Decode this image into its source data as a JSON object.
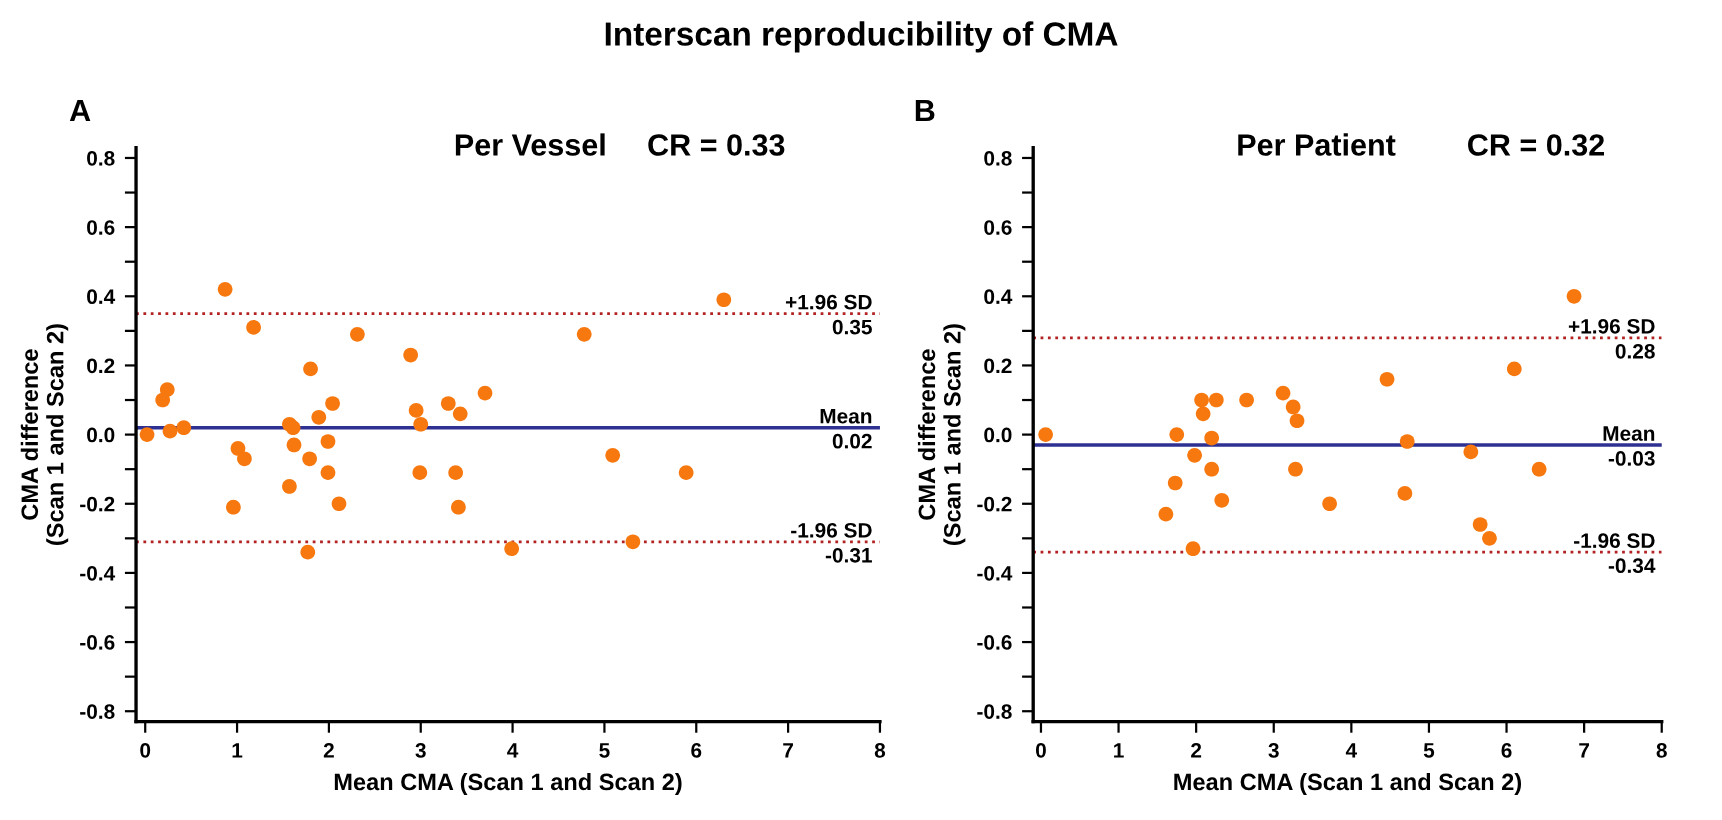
{
  "chart_data": [
    {
      "type": "scatter",
      "title": "Per Vessel",
      "xlabel": "Mean CMA (Scan 1 and Scan 2)",
      "ylabel": "CMA difference\n(Scan 1 and Scan 2)",
      "annotations": [
        "Interscan reproducibility of CMA",
        "A",
        "CR = 0.33",
        {
          "text": "0.35",
          "y": 0.35
        },
        {
          "text": "0.02",
          "y": 0.02
        },
        {
          "text": "-0.31",
          "y": -0.31
        }
      ],
      "series": [
        {
          "color": "#f7780f",
          "x": [
            0.02,
            0.19,
            0.24,
            0.27,
            0.42,
            0.87,
            0.96,
            1.01,
            1.08,
            1.18,
            1.57,
            1.61,
            1.57,
            1.62,
            1.8,
            1.79,
            1.77,
            1.89,
            1.99,
            1.99,
            2.04,
            2.11,
            2.31,
            2.89,
            2.95,
            3.0,
            2.99,
            3.3,
            3.43,
            3.38,
            3.41,
            3.7,
            3.99,
            4.78,
            5.09,
            5.31,
            5.89,
            6.3
          ],
          "values": [
            0.0,
            0.1,
            0.13,
            0.01,
            0.02,
            0.42,
            -0.21,
            -0.04,
            -0.07,
            0.31,
            0.03,
            0.02,
            -0.15,
            -0.03,
            0.19,
            -0.07,
            -0.34,
            0.05,
            -0.02,
            -0.11,
            0.09,
            -0.2,
            0.29,
            0.23,
            0.07,
            0.03,
            -0.11,
            0.09,
            0.06,
            -0.11,
            -0.21,
            0.12,
            -0.33,
            0.29,
            -0.06,
            -0.31,
            -0.11,
            0.39
          ]
        }
      ],
      "ref_lines": [
        {
          "axis": "y",
          "value": 0.35,
          "label": "+1.96 SD",
          "color": "#b22222",
          "line_style": "dotted"
        },
        {
          "axis": "y",
          "value": 0.02,
          "label": "Mean",
          "color": "#2e3192",
          "line_style": "solid"
        },
        {
          "axis": "y",
          "value": -0.31,
          "label": "-1.96 SD",
          "color": "#b22222",
          "line_style": "dotted"
        }
      ],
      "xlim": [
        -0.1,
        8
      ],
      "ylim": [
        -0.83,
        0.83
      ],
      "xticks": [
        0,
        1,
        2,
        3,
        4,
        5,
        6,
        7,
        8
      ],
      "yticks": [
        -0.8,
        {
          "value": -0.7,
          "label": null
        },
        -0.6,
        {
          "value": -0.5,
          "label": null
        },
        -0.4,
        {
          "value": -0.3,
          "label": null
        },
        -0.2,
        {
          "value": -0.1,
          "label": null
        },
        {
          "value": 0.0,
          "label": "0.0"
        },
        {
          "value": 0.1,
          "label": null
        },
        0.2,
        {
          "value": 0.3,
          "label": null
        },
        0.4,
        {
          "value": 0.5,
          "label": null
        },
        0.6,
        {
          "value": 0.7,
          "label": null
        },
        0.8
      ],
      "grid": false,
      "legend": false,
      "marker": "circle"
    },
    {
      "type": "scatter",
      "title": "Per Patient",
      "xlabel": "Mean CMA (Scan 1 and Scan 2)",
      "ylabel": "CMA difference\n(Scan 1 and Scan 2)",
      "annotations": [
        "B",
        "CR = 0.32",
        {
          "text": "0.28",
          "y": 0.28
        },
        {
          "text": "-0.03",
          "y": -0.03
        },
        {
          "text": "-0.34",
          "y": -0.34
        }
      ],
      "series": [
        {
          "color": "#f7780f",
          "x": [
            0.06,
            1.61,
            1.73,
            1.75,
            1.96,
            1.98,
            2.07,
            2.09,
            2.2,
            2.2,
            2.26,
            2.33,
            2.65,
            3.12,
            3.25,
            3.3,
            3.28,
            3.72,
            4.46,
            4.72,
            4.69,
            5.54,
            5.66,
            5.78,
            6.1,
            6.42,
            6.87
          ],
          "values": [
            0.0,
            -0.23,
            -0.14,
            0.0,
            -0.33,
            -0.06,
            0.1,
            0.06,
            -0.01,
            -0.1,
            0.1,
            -0.19,
            0.1,
            0.12,
            0.08,
            0.04,
            -0.1,
            -0.2,
            0.16,
            -0.02,
            -0.17,
            -0.05,
            -0.26,
            -0.3,
            0.19,
            -0.1,
            0.4
          ]
        }
      ],
      "ref_lines": [
        {
          "axis": "y",
          "value": 0.28,
          "label": "+1.96 SD",
          "color": "#b22222",
          "line_style": "dotted"
        },
        {
          "axis": "y",
          "value": -0.03,
          "label": "Mean",
          "color": "#2e3192",
          "line_style": "solid"
        },
        {
          "axis": "y",
          "value": -0.34,
          "label": "-1.96 SD",
          "color": "#b22222",
          "line_style": "dotted"
        }
      ],
      "xlim": [
        -0.1,
        8
      ],
      "ylim": [
        -0.83,
        0.83
      ],
      "xticks": [
        0,
        1,
        2,
        3,
        4,
        5,
        6,
        7,
        8
      ],
      "yticks": [
        -0.8,
        {
          "value": -0.7,
          "label": null
        },
        -0.6,
        {
          "value": -0.5,
          "label": null
        },
        -0.4,
        {
          "value": -0.3,
          "label": null
        },
        -0.2,
        {
          "value": -0.1,
          "label": null
        },
        {
          "value": 0.0,
          "label": "0.0"
        },
        {
          "value": 0.1,
          "label": null
        },
        0.2,
        {
          "value": 0.3,
          "label": null
        },
        0.4,
        {
          "value": 0.5,
          "label": null
        },
        0.6,
        {
          "value": 0.7,
          "label": null
        },
        0.8
      ],
      "grid": false,
      "legend": false,
      "marker": "circle"
    }
  ]
}
